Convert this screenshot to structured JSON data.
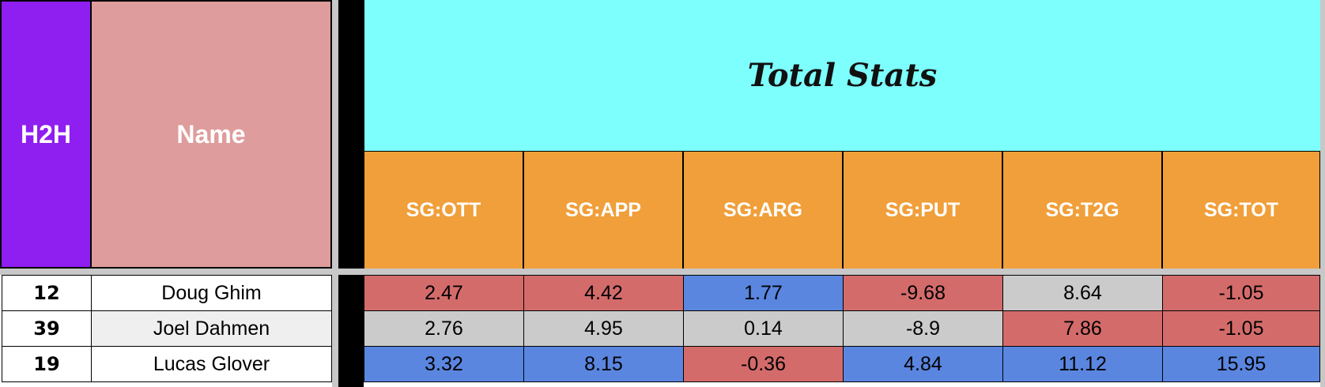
{
  "headers": {
    "h2h": "H2H",
    "name": "Name",
    "section_title": "Total Stats",
    "stats": [
      "SG:OTT",
      "SG:APP",
      "SG:ARG",
      "SG:PUT",
      "SG:T2G",
      "SG:TOT"
    ]
  },
  "rows": [
    {
      "h2h": "12",
      "name": "Doug Ghim",
      "stats": [
        "2.47",
        "4.42",
        "1.77",
        "-9.68",
        "8.64",
        "-1.05"
      ]
    },
    {
      "h2h": "39",
      "name": "Joel Dahmen",
      "stats": [
        "2.76",
        "4.95",
        "0.14",
        "-8.9",
        "7.86",
        "-1.05"
      ]
    },
    {
      "h2h": "19",
      "name": "Lucas Glover",
      "stats": [
        "3.32",
        "8.15",
        "-0.36",
        "4.84",
        "11.12",
        "15.95"
      ]
    }
  ],
  "colors": {
    "h2h_header": "#8f1ef0",
    "name_header": "#df9c9c",
    "title_band": "#7dfffd",
    "stat_header": "#f09f3a",
    "red": "#d46b6b",
    "blue": "#5a86e0",
    "grey": "#cbcbcb"
  }
}
